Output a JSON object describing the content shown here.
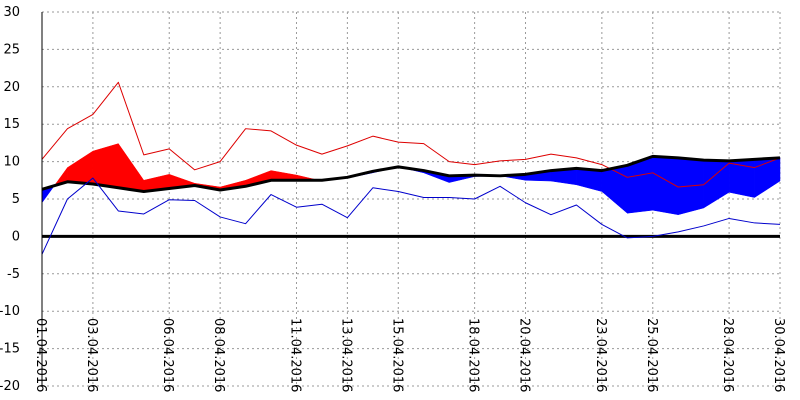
{
  "chart_data": {
    "type": "line",
    "title": "",
    "xlabel": "",
    "ylabel": "",
    "ylim": [
      -20,
      30
    ],
    "yticks": [
      30,
      25,
      20,
      15,
      10,
      5,
      0,
      -5,
      -10,
      -15,
      -20
    ],
    "x": [
      "01.04.2016",
      "02.04.2016",
      "03.04.2016",
      "04.04.2016",
      "05.04.2016",
      "06.04.2016",
      "07.04.2016",
      "08.04.2016",
      "09.04.2016",
      "10.04.2016",
      "11.04.2016",
      "12.04.2016",
      "13.04.2016",
      "14.04.2016",
      "15.04.2016",
      "16.04.2016",
      "17.04.2016",
      "18.04.2016",
      "19.04.2016",
      "20.04.2016",
      "21.04.2016",
      "22.04.2016",
      "23.04.2016",
      "24.04.2016",
      "25.04.2016",
      "26.04.2016",
      "27.04.2016",
      "28.04.2016",
      "29.04.2016",
      "30.04.2016"
    ],
    "x_tick_labels": [
      "01.04.2016",
      "03.04.2016",
      "06.04.2016",
      "08.04.2016",
      "11.04.2016",
      "13.04.2016",
      "15.04.2016",
      "18.04.2016",
      "20.04.2016",
      "23.04.2016",
      "25.04.2016",
      "28.04.2016",
      "30.04.2016"
    ],
    "x_tick_indices": [
      0,
      2,
      5,
      7,
      10,
      12,
      14,
      17,
      19,
      22,
      24,
      27,
      29
    ],
    "grid": true,
    "series": [
      {
        "key": "max",
        "color": "#dd0000",
        "values": [
          10.3,
          14.4,
          16.3,
          20.6,
          10.9,
          11.7,
          8.9,
          10.0,
          14.4,
          14.1,
          12.2,
          11.0,
          12.1,
          13.4,
          12.6,
          12.4,
          10.0,
          9.6,
          10.1,
          10.3,
          11.0,
          10.5,
          9.6,
          7.9,
          8.5,
          6.6,
          6.9,
          9.8,
          9.2,
          10.5
        ]
      },
      {
        "key": "mean",
        "color": "#000000",
        "values": [
          6.3,
          7.3,
          7.0,
          6.5,
          6.0,
          6.4,
          6.8,
          6.2,
          6.7,
          7.5,
          7.5,
          7.5,
          7.9,
          8.7,
          9.3,
          8.8,
          8.1,
          8.2,
          8.1,
          8.3,
          8.8,
          9.1,
          8.8,
          9.5,
          10.7,
          10.5,
          10.2,
          10.1,
          10.3,
          10.5
        ]
      },
      {
        "key": "observed",
        "color": "#ff0000",
        "values": [
          4.5,
          9.2,
          11.4,
          12.4,
          7.5,
          8.3,
          7.1,
          6.6,
          7.5,
          8.8,
          8.2,
          7.4,
          7.8,
          8.5,
          9.3,
          8.5,
          7.2,
          8.0,
          8.1,
          7.5,
          7.4,
          6.9,
          6.0,
          3.1,
          3.5,
          2.9,
          3.8,
          5.9,
          5.2,
          7.4
        ]
      },
      {
        "key": "min",
        "color": "#0000cc",
        "values": [
          -2.4,
          5.0,
          7.8,
          3.4,
          3.0,
          4.9,
          4.8,
          2.6,
          1.7,
          5.6,
          3.9,
          4.3,
          2.5,
          6.5,
          6.0,
          5.2,
          5.2,
          5.0,
          6.7,
          4.5,
          2.9,
          4.2,
          1.6,
          -0.2,
          0.0,
          0.6,
          1.4,
          2.4,
          1.8,
          1.6
        ]
      }
    ],
    "colors": {
      "above_mean_fill": "#ff0000",
      "below_mean_fill": "#0000ff",
      "zero_line": "#000000",
      "grid": "#9a9a9a"
    }
  }
}
